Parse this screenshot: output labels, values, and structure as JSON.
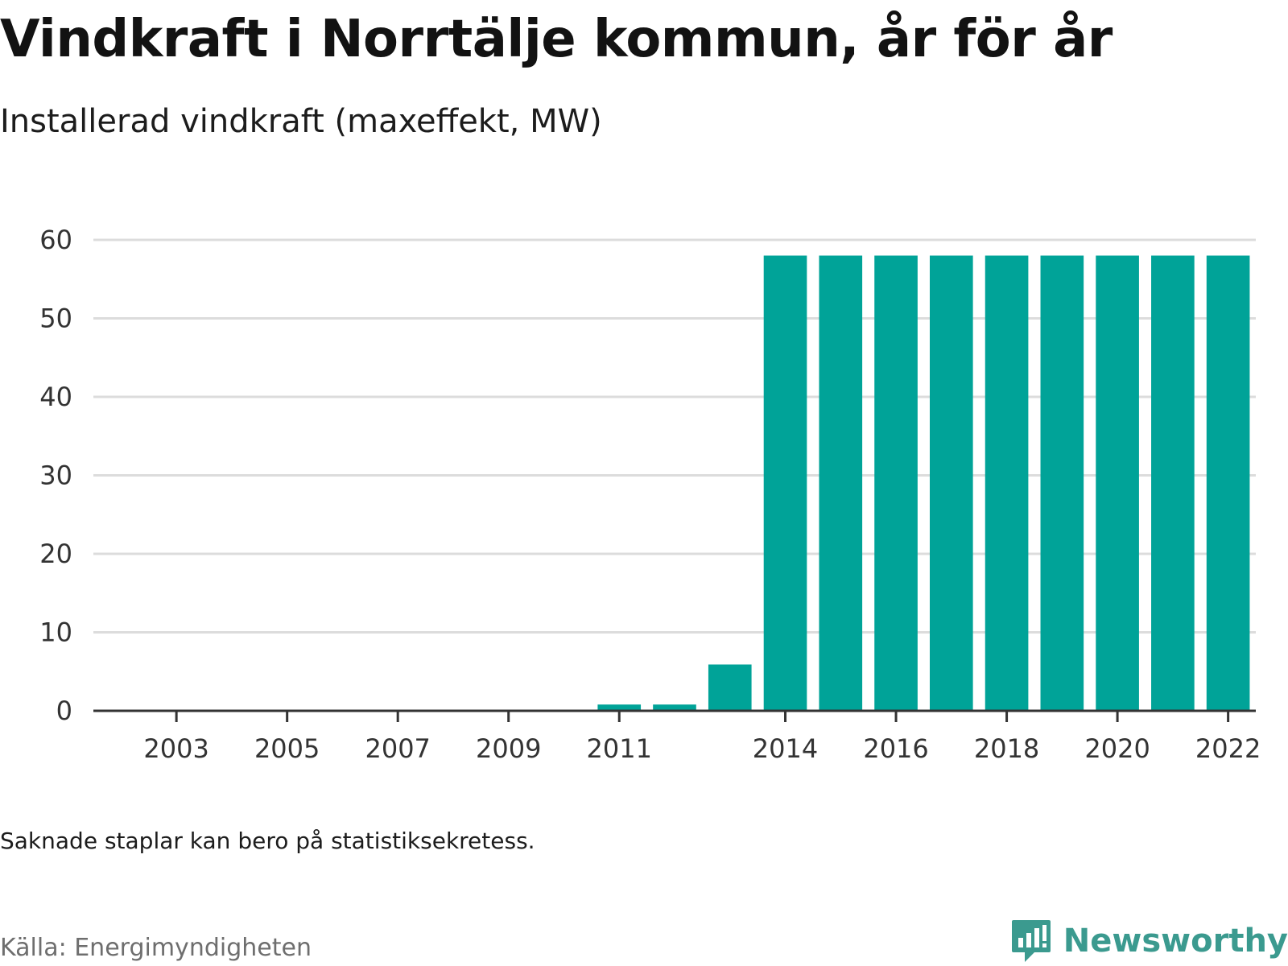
{
  "title": "Vindkraft i Norrtälje kommun, år för år",
  "subtitle": "Installerad vindkraft (maxeffekt, MW)",
  "note": "Saknade staplar kan bero på statistiksekretess.",
  "source": "Källa: Energimyndigheten",
  "brand": {
    "name": "Newsworthy",
    "icon": "newsworthy-logo-icon",
    "color": "#3b9a8f"
  },
  "colors": {
    "bar": "#00a398",
    "grid": "#dcdcdc",
    "axis": "#333333"
  },
  "chart_data": {
    "type": "bar",
    "title": "",
    "xlabel": "",
    "ylabel": "",
    "categories": [
      "2002",
      "2003",
      "2004",
      "2005",
      "2006",
      "2007",
      "2008",
      "2009",
      "2010",
      "2011",
      "2012",
      "2013",
      "2014",
      "2015",
      "2016",
      "2017",
      "2018",
      "2019",
      "2020",
      "2021",
      "2022"
    ],
    "values": [
      0,
      0,
      0,
      0,
      0,
      0,
      0,
      0,
      0,
      0.8,
      0.8,
      5.9,
      58,
      58,
      58,
      58,
      58,
      58,
      58,
      58,
      58
    ],
    "ylim": [
      0,
      60
    ],
    "yticks": [
      0,
      10,
      20,
      30,
      40,
      50,
      60
    ],
    "xticks": [
      "2003",
      "2005",
      "2007",
      "2009",
      "2011",
      "2014",
      "2016",
      "2018",
      "2020",
      "2022"
    ],
    "grid": true,
    "legend": "none"
  }
}
